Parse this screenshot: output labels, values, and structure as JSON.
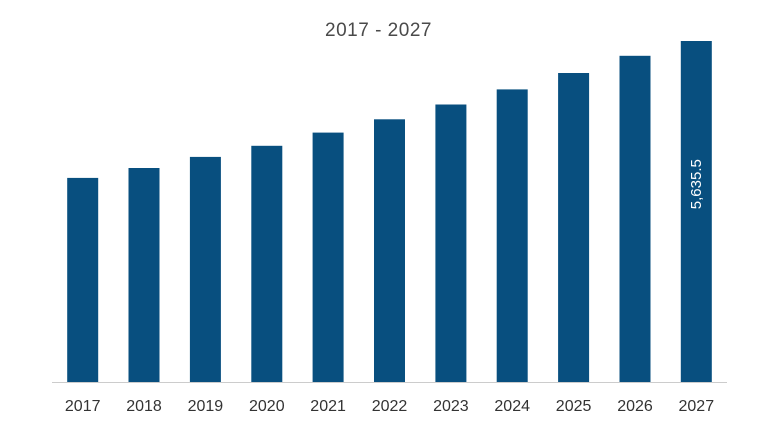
{
  "chart_data": {
    "type": "bar",
    "title": "2017 - 2027",
    "xlabel": "",
    "ylabel": "",
    "categories": [
      "2017",
      "2018",
      "2019",
      "2020",
      "2021",
      "2022",
      "2023",
      "2024",
      "2025",
      "2026",
      "2027"
    ],
    "values": [
      3373,
      3537,
      3720,
      3903,
      4121,
      4341,
      4586,
      4836,
      5107,
      5391,
      5635.5
    ],
    "ylim": [
      0,
      5635.5
    ],
    "data_labels": [
      {
        "category": "2027",
        "text": "5,635.5"
      }
    ],
    "bar_color": "#084F7F",
    "axis_color": "#cccccc",
    "grid": false,
    "legend": "none"
  }
}
